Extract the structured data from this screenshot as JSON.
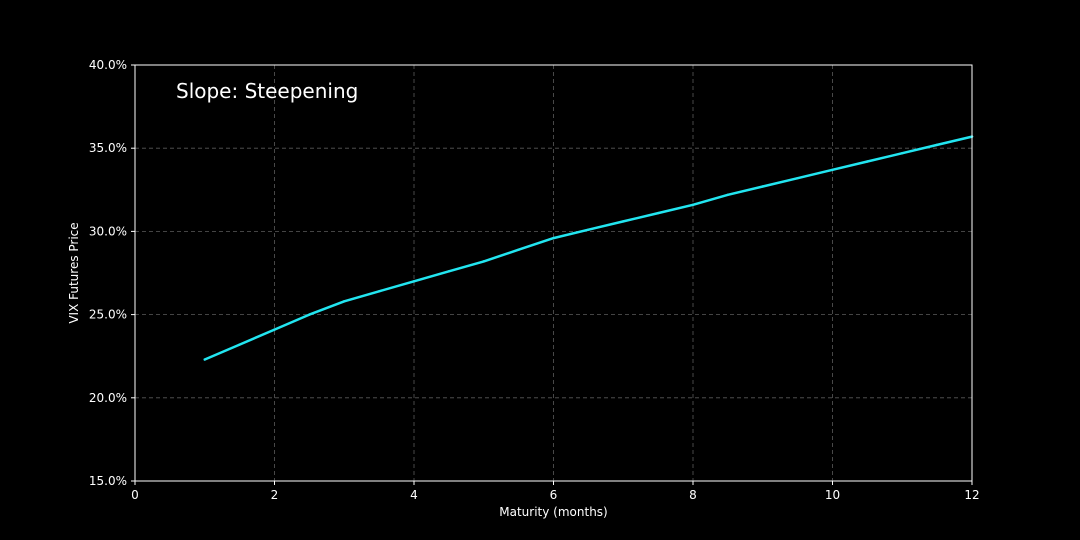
{
  "chart_data": {
    "type": "line",
    "xlabel": "Maturity (months)",
    "ylabel": "VIX Futures Price",
    "annotation": "Slope: Steepening",
    "xlim": [
      0,
      12
    ],
    "ylim": [
      15,
      40
    ],
    "x_ticks": [
      0,
      2,
      4,
      6,
      8,
      10,
      12
    ],
    "x_tick_labels": [
      "0",
      "2",
      "4",
      "6",
      "8",
      "10",
      "12"
    ],
    "y_ticks": [
      15,
      20,
      25,
      30,
      35,
      40
    ],
    "y_tick_labels": [
      "15.0%",
      "20.0%",
      "25.0%",
      "30.0%",
      "35.0%",
      "40.0%"
    ],
    "grid": true,
    "series": [
      {
        "color": "#22e5f0",
        "x": [
          1,
          1.5,
          2,
          2.5,
          3,
          3.5,
          4,
          4.5,
          5,
          5.5,
          6,
          6.5,
          7,
          7.5,
          8,
          8.5,
          9,
          9.5,
          10,
          10.5,
          11,
          11.5,
          12
        ],
        "y": [
          22.3,
          23.2,
          24.1,
          25.0,
          25.8,
          26.4,
          27.0,
          27.6,
          28.2,
          28.9,
          29.6,
          30.1,
          30.6,
          31.1,
          31.6,
          32.2,
          32.7,
          33.2,
          33.7,
          34.2,
          34.7,
          35.2,
          35.7
        ]
      }
    ]
  }
}
